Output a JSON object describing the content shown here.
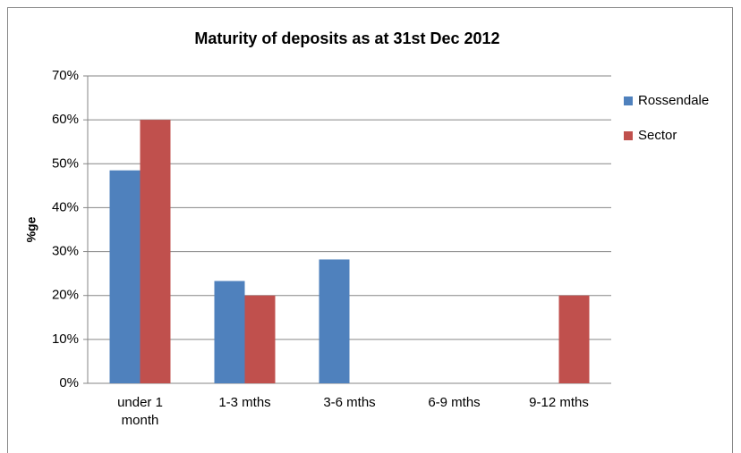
{
  "chart_data": {
    "type": "bar",
    "title": "Maturity of deposits as at 31st Dec 2012",
    "y_label": "%ge",
    "categories": [
      "under 1 month",
      "1-3 mths",
      "3-6 mths",
      "6-9 mths",
      "9-12 mths"
    ],
    "series": [
      {
        "name": "Rossendale",
        "color": "#4f81bd",
        "values": [
          48.5,
          23.3,
          28.2,
          0,
          0
        ]
      },
      {
        "name": "Sector",
        "color": "#c0504d",
        "values": [
          60,
          20,
          0,
          0,
          20
        ]
      }
    ],
    "ylim": [
      0,
      70
    ],
    "yticks": [
      {
        "value": 0,
        "label": "0%"
      },
      {
        "value": 10,
        "label": "10%"
      },
      {
        "value": 20,
        "label": "20%"
      },
      {
        "value": 30,
        "label": "30%"
      },
      {
        "value": 40,
        "label": "40%"
      },
      {
        "value": 50,
        "label": "50%"
      },
      {
        "value": 60,
        "label": "60%"
      },
      {
        "value": 70,
        "label": "70%"
      }
    ],
    "grid": true,
    "legend": "right"
  }
}
